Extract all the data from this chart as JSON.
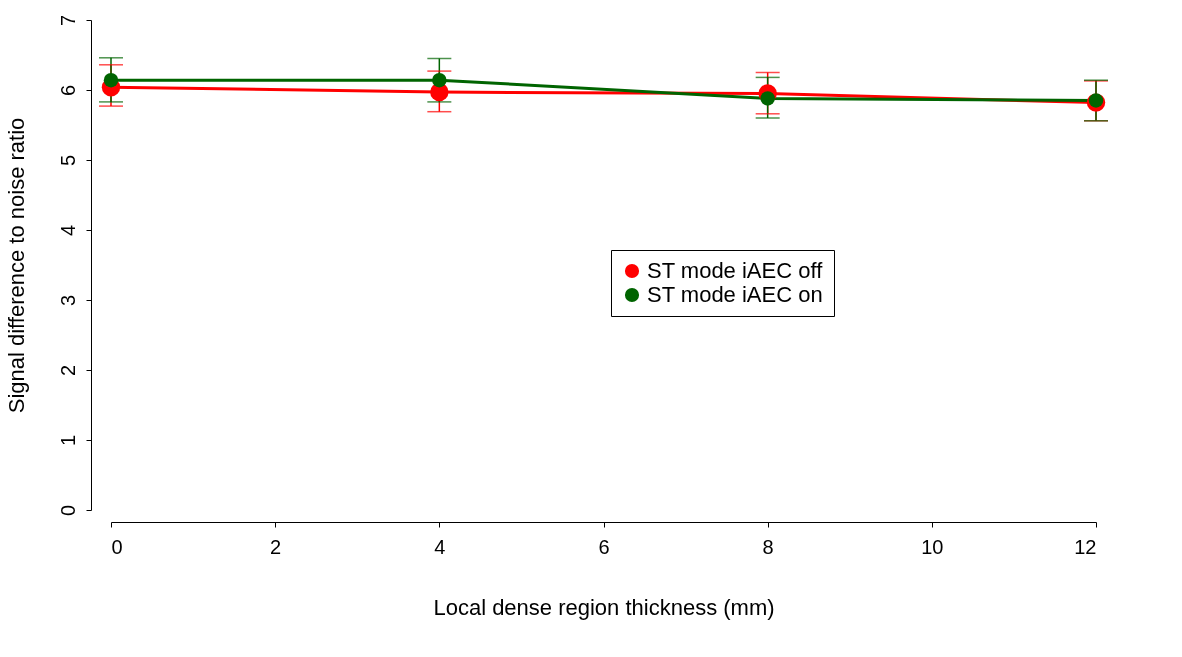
{
  "chart_data": {
    "type": "line",
    "xlabel": "Local dense region thickness (mm)",
    "ylabel": "Signal difference to noise ratio",
    "x": [
      0,
      4,
      8,
      12
    ],
    "series": [
      {
        "name": "ST mode iAEC off",
        "color": "#ff0000",
        "values": [
          6.04,
          5.97,
          5.95,
          5.82
        ],
        "errors": [
          [
            5.77,
            6.36
          ],
          [
            5.69,
            6.27
          ],
          [
            5.66,
            6.25
          ],
          [
            5.56,
            6.13
          ]
        ]
      },
      {
        "name": "ST mode iAEC on",
        "color": "#006400",
        "values": [
          6.14,
          6.14,
          5.88,
          5.85
        ],
        "errors": [
          [
            5.83,
            6.46
          ],
          [
            5.83,
            6.45
          ],
          [
            5.6,
            6.18
          ],
          [
            5.56,
            6.14
          ]
        ]
      }
    ],
    "xlim": [
      0,
      12
    ],
    "xticks": [
      0,
      2,
      4,
      6,
      8,
      10,
      12
    ],
    "ylim": [
      0,
      7
    ],
    "yticks": [
      0,
      1,
      2,
      3,
      4,
      5,
      6,
      7
    ],
    "marker": "circle",
    "line_style": "solid",
    "grid": false,
    "legend": "right"
  }
}
